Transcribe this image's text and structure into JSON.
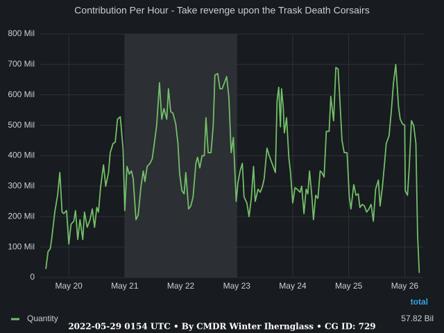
{
  "chart_data": {
    "type": "line",
    "title": "Contribution Per Hour - Take revenge upon the Trask Death Corsairs",
    "footer": "2022-05-29 0154 UTC • By CMDR Winter Iherngl​ass • CG ID: 729",
    "highlight": [
      21,
      23
    ],
    "xlim": [
      19.49,
      26.33
    ],
    "xticks": [
      {
        "value": 20,
        "label": "May 20"
      },
      {
        "value": 21,
        "label": "May 21"
      },
      {
        "value": 22,
        "label": "May 22"
      },
      {
        "value": 23,
        "label": "May 23"
      },
      {
        "value": 24,
        "label": "May 24"
      },
      {
        "value": 25,
        "label": "May 25"
      },
      {
        "value": 26,
        "label": "May 26"
      }
    ],
    "ylim": [
      0,
      800
    ],
    "yticks": [
      0,
      {
        "value": 100,
        "label": "100 Mil"
      },
      {
        "value": 200,
        "label": "200 Mil"
      },
      {
        "value": 300,
        "label": "300 Mil"
      },
      {
        "value": 400,
        "label": "400 Mil"
      },
      {
        "value": 500,
        "label": "500 Mil"
      },
      {
        "value": 600,
        "label": "600 Mil"
      },
      {
        "value": 700,
        "label": "700 Mil"
      },
      {
        "value": 800,
        "label": "800 Mil"
      }
    ],
    "grid": true,
    "legend_header": "total",
    "x": [
      19.59,
      19.63,
      19.67,
      19.7,
      19.75,
      19.8,
      19.84,
      19.88,
      19.91,
      19.96,
      20.0,
      20.04,
      20.09,
      20.12,
      20.16,
      20.2,
      20.25,
      20.28,
      20.33,
      20.38,
      20.42,
      20.46,
      20.5,
      20.53,
      20.57,
      20.62,
      20.66,
      20.71,
      20.74,
      20.79,
      20.83,
      20.87,
      20.92,
      20.97,
      21.0,
      21.04,
      21.08,
      21.12,
      21.15,
      21.2,
      21.24,
      21.29,
      21.33,
      21.36,
      21.4,
      21.45,
      21.49,
      21.52,
      21.57,
      21.62,
      21.66,
      21.7,
      21.75,
      21.78,
      21.82,
      21.86,
      21.91,
      21.95,
      21.98,
      22.02,
      22.06,
      22.09,
      22.14,
      22.18,
      22.22,
      22.27,
      22.3,
      22.34,
      22.38,
      22.42,
      22.45,
      22.49,
      22.54,
      22.58,
      22.61,
      22.66,
      22.7,
      22.74,
      22.78,
      22.82,
      22.86,
      22.9,
      22.94,
      22.99,
      23.02,
      23.06,
      23.1,
      23.13,
      23.18,
      23.22,
      23.26,
      23.3,
      23.33,
      23.38,
      23.42,
      23.46,
      23.49,
      23.54,
      23.58,
      23.62,
      23.66,
      23.69,
      23.72,
      23.75,
      23.78,
      23.8,
      23.83,
      23.85,
      23.89,
      23.93,
      23.96,
      24.0,
      24.04,
      24.08,
      24.13,
      24.16,
      24.2,
      24.24,
      24.27,
      24.3,
      24.34,
      24.37,
      24.41,
      24.45,
      24.49,
      24.52,
      24.56,
      24.6,
      24.65,
      24.68,
      24.73,
      24.77,
      24.81,
      24.84,
      24.88,
      24.92,
      24.97,
      25.01,
      25.04,
      25.09,
      25.13,
      25.17,
      25.2,
      25.24,
      25.28,
      25.32,
      25.36,
      25.4,
      25.44,
      25.48,
      25.53,
      25.56,
      25.6,
      25.64,
      25.67,
      25.72,
      25.76,
      25.8,
      25.84,
      25.89,
      25.92,
      25.96,
      26.0,
      26.01,
      26.05,
      26.08,
      26.12,
      26.16,
      26.2,
      26.23,
      26.26
    ],
    "series": [
      {
        "name": "Quantity",
        "color": "#73bf69",
        "total": 57820,
        "total_label": "57.82 Bil",
        "values": [
          28,
          85,
          95,
          135,
          215,
          270,
          345,
          215,
          210,
          220,
          110,
          175,
          185,
          220,
          125,
          190,
          125,
          215,
          165,
          190,
          225,
          165,
          230,
          215,
          300,
          370,
          300,
          345,
          410,
          440,
          445,
          520,
          528,
          420,
          220,
          365,
          340,
          350,
          325,
          190,
          205,
          300,
          350,
          315,
          365,
          375,
          390,
          430,
          500,
          640,
          520,
          555,
          520,
          620,
          545,
          540,
          505,
          440,
          340,
          285,
          275,
          345,
          225,
          235,
          265,
          375,
          395,
          360,
          400,
          400,
          525,
          410,
          410,
          500,
          665,
          670,
          620,
          620,
          640,
          660,
          590,
          410,
          460,
          250,
          310,
          350,
          375,
          265,
          245,
          200,
          260,
          365,
          250,
          290,
          280,
          300,
          325,
          425,
          400,
          380,
          360,
          345,
          580,
          625,
          495,
          620,
          560,
          475,
          525,
          395,
          345,
          245,
          295,
          290,
          280,
          300,
          210,
          290,
          275,
          350,
          270,
          190,
          270,
          260,
          350,
          345,
          330,
          480,
          480,
          595,
          515,
          690,
          685,
          590,
          450,
          410,
          410,
          265,
          225,
          305,
          270,
          275,
          230,
          240,
          235,
          215,
          225,
          240,
          185,
          290,
          320,
          235,
          295,
          375,
          440,
          465,
          545,
          640,
          700,
          560,
          520,
          505,
          500,
          285,
          270,
          360,
          515,
          500,
          440,
          140,
          15
        ]
      }
    ]
  }
}
